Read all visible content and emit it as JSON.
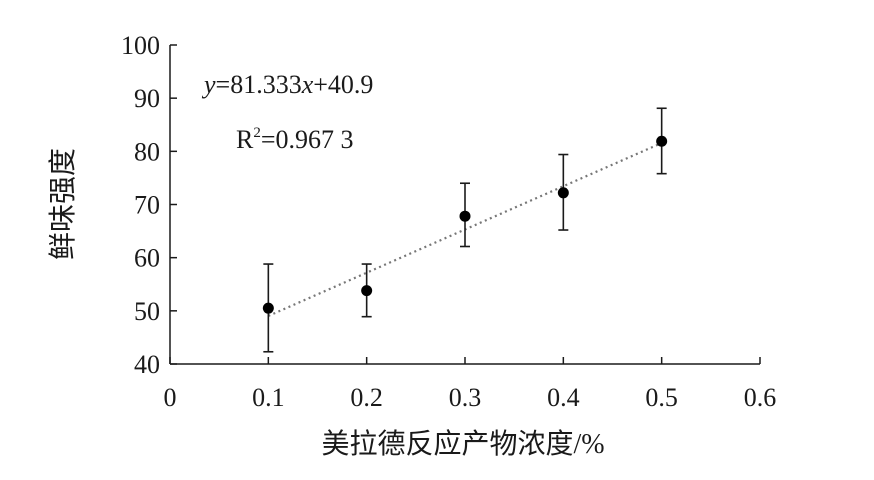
{
  "chart_data": {
    "type": "scatter",
    "title": "",
    "xlabel": "美拉德反应产物浓度/%",
    "ylabel": "鲜味强度",
    "xlim": [
      0,
      0.6
    ],
    "ylim": [
      40,
      100
    ],
    "x_ticks": [
      "0",
      "0.1",
      "0.2",
      "0.3",
      "0.4",
      "0.5",
      "0.6"
    ],
    "y_ticks": [
      "40",
      "50",
      "60",
      "70",
      "80",
      "90",
      "100"
    ],
    "grid": false,
    "legend": "none",
    "series": [
      {
        "x": [
          0.1,
          0.2,
          0.3,
          0.4,
          0.5
        ],
        "y": [
          50.5,
          53.8,
          67.8,
          72.2,
          81.9
        ],
        "error_lower": [
          42.3,
          48.9,
          62.1,
          65.2,
          75.8
        ],
        "error_upper": [
          58.8,
          58.8,
          74.0,
          79.4,
          88.1
        ],
        "marker_color": "#000000"
      }
    ],
    "trendline": {
      "style": "dotted",
      "color": "#777777",
      "x_range": [
        0.1,
        0.5
      ],
      "slope": 81.333,
      "intercept": 40.9
    },
    "annotations": {
      "equation_prefix": "y",
      "equation_eq": "=81.333",
      "equation_var": "x",
      "equation_suffix": "+40.9",
      "r2_label": "R",
      "r2_sup": "2",
      "r2_value": "=0.967 3"
    }
  }
}
